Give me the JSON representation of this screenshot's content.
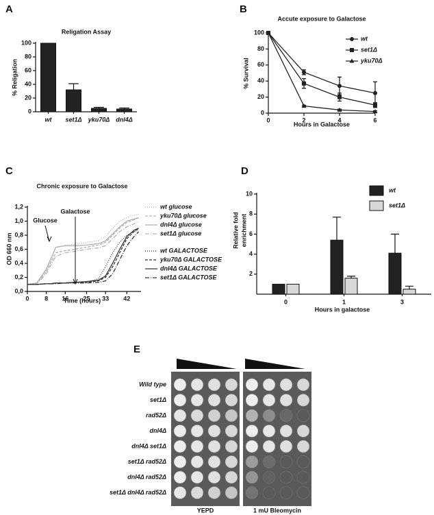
{
  "chart_data": [
    {
      "type": "bar",
      "panel": "A",
      "title": "Religation Assay",
      "ylabel": "% Religation",
      "categories": [
        "wt",
        "set1Δ",
        "yku70Δ",
        "dnl4Δ"
      ],
      "values": [
        100,
        32,
        5,
        4
      ],
      "errors": [
        0,
        9,
        1.5,
        1.5
      ],
      "color": "#222222",
      "ylim": [
        0,
        100
      ],
      "yticks": [
        0,
        20,
        40,
        60,
        80,
        100
      ]
    },
    {
      "type": "line",
      "panel": "B",
      "title": "Accute exposure to Galactose",
      "xlabel": "Hours in Galactose",
      "ylabel": "% Survival",
      "x": [
        0,
        2,
        4,
        6
      ],
      "xlim": [
        0,
        6
      ],
      "xticks": [
        0,
        2,
        4,
        6
      ],
      "ylim": [
        0,
        100
      ],
      "yticks": [
        0,
        20,
        40,
        60,
        80,
        100
      ],
      "series": [
        {
          "name": "wt",
          "color": "#222222",
          "marker": "circle",
          "values": [
            100,
            51,
            34,
            25
          ],
          "errors": [
            0,
            3,
            11,
            14
          ]
        },
        {
          "name": "set1Δ",
          "color": "#222222",
          "marker": "square",
          "values": [
            100,
            37,
            20,
            10
          ],
          "errors": [
            0,
            6,
            5,
            3
          ]
        },
        {
          "name": "yku70Δ",
          "color": "#222222",
          "marker": "triangle",
          "values": [
            100,
            9,
            4,
            2
          ],
          "errors": [
            0,
            1,
            1,
            1
          ]
        }
      ]
    },
    {
      "type": "line",
      "panel": "C",
      "title": "Chronic exposure to Galactose",
      "xlabel": "Time (hours)",
      "ylabel": "OD 660 nm",
      "annotations": [
        "Glucose",
        "Galactose"
      ],
      "x": [
        0,
        4,
        8,
        10,
        12,
        16,
        20,
        25,
        30,
        33,
        36,
        39,
        42,
        45,
        47
      ],
      "xlim": [
        0,
        48
      ],
      "xticks": [
        0,
        8,
        16,
        25,
        33,
        42
      ],
      "ylim": [
        0,
        1.2
      ],
      "yticks": [
        {
          "value": 0,
          "label": "0,0"
        },
        {
          "value": 0.2,
          "label": "0,2"
        },
        {
          "value": 0.4,
          "label": "0,4"
        },
        {
          "value": 0.6,
          "label": "0,6"
        },
        {
          "value": 0.8,
          "label": "0,8"
        },
        {
          "value": 1,
          "label": "1,0"
        },
        {
          "value": 1.2,
          "label": "1,2"
        }
      ],
      "series": [
        {
          "name": "wt glucose",
          "color": "#b0b0b0",
          "dash": "1,2",
          "values": [
            0.1,
            0.12,
            0.3,
            0.45,
            0.62,
            0.66,
            0.67,
            0.7,
            0.72,
            0.78,
            0.9,
            1.0,
            1.05,
            1.08,
            1.1
          ]
        },
        {
          "name": "yku70Δ glucose",
          "color": "#b0b0b0",
          "dash": "4,2",
          "values": [
            0.1,
            0.12,
            0.28,
            0.42,
            0.55,
            0.58,
            0.6,
            0.63,
            0.66,
            0.7,
            0.8,
            0.9,
            0.98,
            1.02,
            1.05
          ]
        },
        {
          "name": "dnl4Δ glucose",
          "color": "#b0b0b0",
          "dash": "none",
          "values": [
            0.1,
            0.12,
            0.32,
            0.47,
            0.63,
            0.65,
            0.65,
            0.66,
            0.68,
            0.72,
            0.82,
            0.92,
            1.0,
            1.03,
            1.05
          ]
        },
        {
          "name": "set1Δ glucose",
          "color": "#b0b0b0",
          "dash": "6,2,1,2",
          "values": [
            0.1,
            0.11,
            0.25,
            0.38,
            0.5,
            0.55,
            0.57,
            0.6,
            0.62,
            0.65,
            0.75,
            0.85,
            0.92,
            0.96,
            1.0
          ]
        },
        {
          "name": "wt GALACTOSE",
          "color": "#333333",
          "dash": "1,2",
          "values": [
            0.1,
            0.1,
            0.11,
            0.11,
            0.12,
            0.12,
            0.13,
            0.13,
            0.18,
            0.35,
            0.55,
            0.7,
            0.8,
            0.85,
            0.88
          ]
        },
        {
          "name": "yku70Δ GALACTOSE",
          "color": "#333333",
          "dash": "4,2",
          "values": [
            0.1,
            0.1,
            0.11,
            0.11,
            0.12,
            0.12,
            0.13,
            0.13,
            0.15,
            0.2,
            0.35,
            0.55,
            0.75,
            0.85,
            0.9
          ]
        },
        {
          "name": "dnl4Δ GALACTOSE",
          "color": "#333333",
          "dash": "none",
          "values": [
            0.1,
            0.1,
            0.11,
            0.11,
            0.12,
            0.12,
            0.13,
            0.14,
            0.16,
            0.22,
            0.4,
            0.6,
            0.78,
            0.87,
            0.9
          ]
        },
        {
          "name": "set1Δ GALACTOSE",
          "color": "#333333",
          "dash": "6,2,1,2",
          "values": [
            0.1,
            0.1,
            0.11,
            0.11,
            0.11,
            0.12,
            0.12,
            0.12,
            0.13,
            0.15,
            0.25,
            0.45,
            0.65,
            0.78,
            0.85
          ]
        }
      ]
    },
    {
      "type": "bar",
      "panel": "D",
      "xlabel": "Hours in galactose",
      "ylabel": [
        "Relative fold",
        "enrichment"
      ],
      "categories": [
        "0",
        "1",
        "3"
      ],
      "ylim": [
        0,
        10
      ],
      "yticks": [
        2,
        4,
        6,
        8,
        10
      ],
      "series": [
        {
          "name": "wt",
          "color": "#222222",
          "values": [
            1,
            5.4,
            4.1
          ],
          "errors": [
            0,
            2.3,
            1.9
          ]
        },
        {
          "name": "set1Δ",
          "color": "#d8d8d8",
          "values": [
            1,
            1.6,
            0.5
          ],
          "errors": [
            0,
            0.2,
            0.3
          ]
        }
      ]
    }
  ],
  "panel_e": {
    "panel": "E",
    "rows": [
      "Wild type",
      "set1Δ",
      "rad52Δ",
      "dnl4Δ",
      "dnl4Δ set1Δ",
      "set1Δ rad52Δ",
      "dnl4Δ rad52Δ",
      "set1Δ dnl4Δ rad52Δ"
    ],
    "columns": [
      "YEPD",
      "1 mU Bleomycin"
    ]
  }
}
